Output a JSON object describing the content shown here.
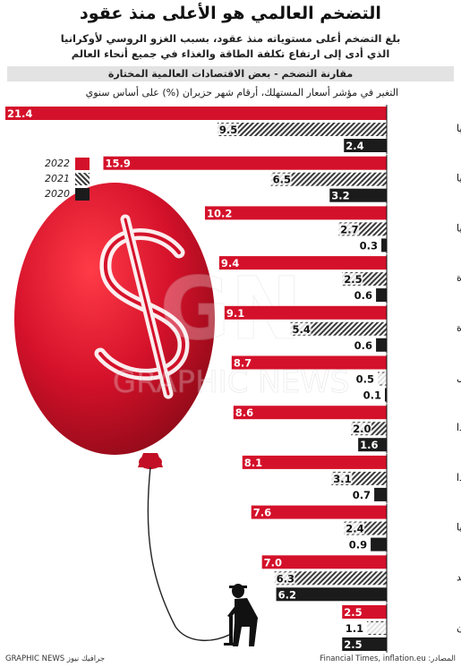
{
  "header": {
    "title": "التضخم العالمي هو الأعلى منذ عقود",
    "subtitle_line1": "بلغ التضخم أعلى مستوياته منذ عقود، بسبب الغزو الروسي لأوكرانيا",
    "subtitle_line2": "الذي أدى إلى ارتفاع تكلفة الطاقة والغذاء في جميع أنحاء العالم"
  },
  "band_label": "مقارنة التضخم - بعض الاقتصادات العالمية المختارة",
  "legend_year_labels": [
    "2022",
    "2021",
    "2020"
  ],
  "watermark": "GRAPHIC NEWS",
  "footer": {
    "source": "المصادر: Financial Times, inflation.eu",
    "credit": "GRAPHIC NEWS جرافيك نيوز"
  },
  "colors": {
    "y2022": "#d4112a",
    "y2021": "#3a3a3a",
    "y2020": "#1b1b1b",
    "balloon": "#d4112a",
    "band": "#e3e3e3"
  },
  "chart_data": {
    "type": "bar",
    "orientation": "horizontal",
    "title": "التغير في مؤشر أسعار المستهلك، أرقام شهر حزيران (%) على أساس سنوي",
    "categories": [
      "أوكرانيا",
      "روسيا",
      "إسبانيا",
      "المملكة المتحدة",
      "الولايات المتحدة",
      "البرتغال",
      "هولندا",
      "كندا",
      "ألمانيا",
      "الهند",
      "الصين"
    ],
    "series": [
      {
        "name": "2022",
        "values": [
          21.4,
          15.9,
          10.2,
          9.4,
          9.1,
          8.7,
          8.6,
          8.1,
          7.6,
          7.0,
          2.5
        ]
      },
      {
        "name": "2021",
        "values": [
          9.5,
          6.5,
          2.7,
          2.5,
          5.4,
          0.5,
          2.0,
          3.1,
          2.4,
          6.3,
          1.1
        ]
      },
      {
        "name": "2020",
        "values": [
          2.4,
          3.2,
          0.3,
          0.6,
          0.6,
          0.1,
          1.6,
          0.7,
          0.9,
          6.2,
          2.5
        ]
      }
    ],
    "value_labels": [
      [
        "21.4",
        "9.5",
        "2.4"
      ],
      [
        "15.9",
        "6.5",
        "3.2"
      ],
      [
        "10.2",
        "2.7",
        "0.3"
      ],
      [
        "9.4",
        "2.5",
        "0.6"
      ],
      [
        "9.1",
        "5.4",
        "0.6"
      ],
      [
        "8.7",
        "0.5",
        "0.1"
      ],
      [
        "8.6",
        "2.0",
        "1.6"
      ],
      [
        "8.1",
        "3.1",
        "0.7"
      ],
      [
        "7.6",
        "2.4",
        "0.9"
      ],
      [
        "7.0",
        "6.3",
        "6.2"
      ],
      [
        "2.5",
        "1.1",
        "2.5"
      ]
    ],
    "value_axis": "right-to-left",
    "xlim": [
      0,
      21.4
    ],
    "legend_placement": "left",
    "grid": false
  }
}
